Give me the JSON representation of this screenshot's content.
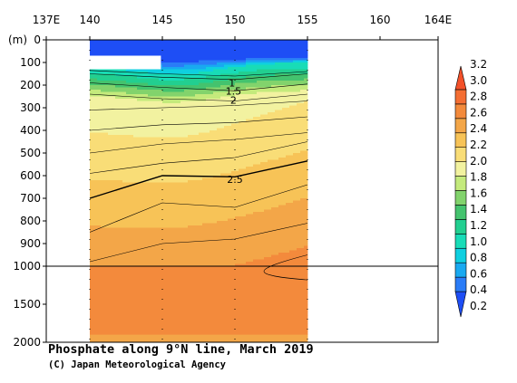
{
  "chart_data": {
    "type": "heatmap",
    "title": "Phosphate along 9°N line, March 2019",
    "credit": "(C) Japan Meteorological Agency",
    "y_unit_label": "(m)",
    "x_ticks": [
      "137E",
      "140",
      "145",
      "150",
      "155",
      "160",
      "164E"
    ],
    "x_tick_values": [
      137,
      140,
      145,
      150,
      155,
      160,
      164
    ],
    "y_ticks_upper": [
      0,
      100,
      200,
      300,
      400,
      500,
      600,
      700,
      800,
      900,
      1000
    ],
    "y_ticks_lower": [
      1000,
      1500,
      2000
    ],
    "xlim": [
      137,
      164
    ],
    "data_extent_lon": [
      140,
      155
    ],
    "depth_break": 1000,
    "station_lons": [
      140,
      145,
      150,
      155
    ],
    "colorbar": {
      "levels": [
        0.2,
        0.4,
        0.6,
        0.8,
        1.0,
        1.2,
        1.4,
        1.6,
        1.8,
        2.0,
        2.2,
        2.4,
        2.6,
        2.8,
        3.0,
        3.2
      ],
      "labels": [
        "0.2",
        "0.4",
        "0.6",
        "0.8",
        "1.0",
        "1.2",
        "1.4",
        "1.6",
        "1.8",
        "2.0",
        "2.2",
        "2.4",
        "2.6",
        "2.8",
        "3.0",
        "3.2"
      ],
      "colors": [
        "#1e4ef5",
        "#2a7cf7",
        "#19a9f0",
        "#0fcfe0",
        "#18dcb7",
        "#22cf90",
        "#44c36e",
        "#82d36c",
        "#c4ea7c",
        "#f2f2a0",
        "#f9dd77",
        "#f7c357",
        "#f3a648",
        "#f38a3c",
        "#f46e33",
        "#f3512a"
      ]
    },
    "contour_labels": [
      {
        "text": "1",
        "lon": 149.8,
        "depth": 190
      },
      {
        "text": "1.5",
        "lon": 149.9,
        "depth": 225
      },
      {
        "text": "2",
        "lon": 149.9,
        "depth": 265
      },
      {
        "text": "2.5",
        "lon": 150.0,
        "depth": 615
      }
    ],
    "no_data_patch": {
      "lon": [
        140,
        144.9
      ],
      "depth": [
        70,
        130
      ]
    }
  }
}
